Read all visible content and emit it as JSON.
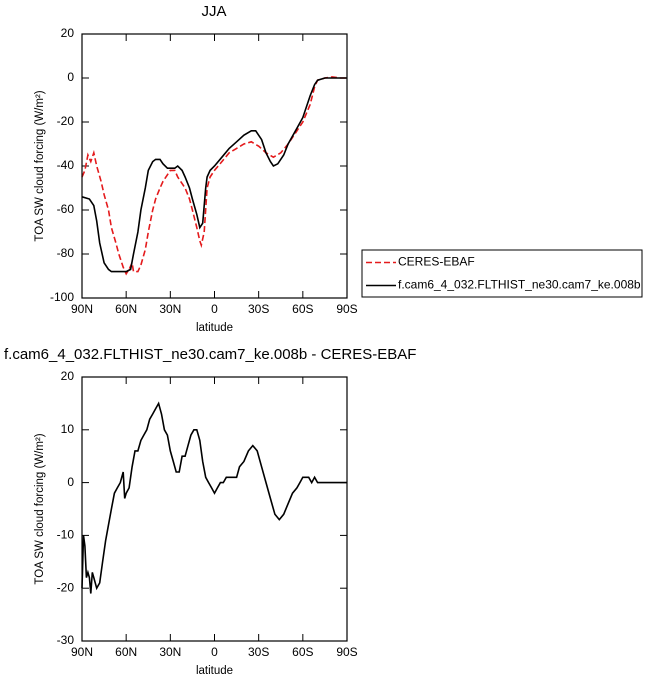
{
  "chart_data": [
    {
      "type": "line",
      "title": "JJA",
      "xlabel": "latitude",
      "ylabel": "TOA SW cloud forcing (W/m²)",
      "xlim": [
        90,
        -90
      ],
      "xticks": [
        {
          "value": 90,
          "label": "90N"
        },
        {
          "value": 60,
          "label": "60N"
        },
        {
          "value": 30,
          "label": "30N"
        },
        0,
        {
          "value": -30,
          "label": "30S"
        },
        {
          "value": -60,
          "label": "60S"
        },
        {
          "value": -90,
          "label": "90S"
        }
      ],
      "ylim": [
        -100,
        20
      ],
      "yticks": [
        -100,
        -80,
        -60,
        -40,
        -20,
        0,
        20
      ],
      "legend": "right",
      "series": [
        {
          "name": "CERES-EBAF",
          "color": "#e41a1c",
          "dashed": true,
          "x": [
            90,
            88,
            86,
            84,
            82,
            80,
            77,
            75,
            72,
            70,
            67,
            65,
            62,
            60,
            58,
            56,
            55,
            52,
            50,
            47,
            45,
            42,
            40,
            37,
            35,
            32,
            30,
            27,
            25,
            22,
            20,
            17,
            15,
            12,
            10,
            9,
            7,
            5,
            3,
            0,
            -5,
            -10,
            -15,
            -20,
            -25,
            -30,
            -35,
            -40,
            -45,
            -50,
            -55,
            -60,
            -65,
            -68,
            -70,
            -75,
            -80,
            -85,
            -90
          ],
          "values": [
            -45,
            -42,
            -35,
            -38,
            -34,
            -40,
            -47,
            -53,
            -60,
            -68,
            -75,
            -80,
            -86,
            -89,
            -87,
            -84,
            -88,
            -88,
            -85,
            -78,
            -70,
            -60,
            -55,
            -50,
            -47,
            -44,
            -42,
            -42,
            -45,
            -48,
            -50,
            -55,
            -60,
            -68,
            -74,
            -76,
            -70,
            -50,
            -45,
            -42,
            -38,
            -34,
            -32,
            -30,
            -29,
            -31,
            -34,
            -36,
            -34,
            -30,
            -25,
            -20,
            -12,
            -4,
            -1,
            0,
            0.5,
            0,
            0
          ]
        },
        {
          "name": "f.cam6_4_032.FLTHIST_ne30.cam7_ke.008b",
          "color": "#000000",
          "dashed": false,
          "x": [
            90,
            85,
            82,
            80,
            78,
            75,
            72,
            70,
            65,
            60,
            57,
            55,
            52,
            50,
            47,
            45,
            42,
            40,
            37,
            35,
            32,
            30,
            27,
            25,
            22,
            20,
            17,
            15,
            12,
            10,
            8,
            6,
            5,
            3,
            0,
            -5,
            -10,
            -15,
            -20,
            -25,
            -28,
            -32,
            -35,
            -38,
            -40,
            -43,
            -47,
            -50,
            -55,
            -60,
            -65,
            -68,
            -70,
            -75,
            -80,
            -85,
            -90
          ],
          "values": [
            -54,
            -55,
            -58,
            -65,
            -75,
            -84,
            -87,
            -88,
            -88,
            -88,
            -87,
            -80,
            -70,
            -60,
            -50,
            -42,
            -38,
            -37,
            -37,
            -39,
            -41,
            -41,
            -41,
            -40,
            -42,
            -45,
            -50,
            -55,
            -62,
            -68,
            -66,
            -50,
            -45,
            -42,
            -40,
            -36,
            -32,
            -29,
            -26,
            -24,
            -24,
            -28,
            -34,
            -38,
            -40,
            -39,
            -35,
            -30,
            -24,
            -18,
            -8,
            -3,
            -1,
            0,
            0,
            0,
            0
          ]
        }
      ]
    },
    {
      "type": "line",
      "title": "f.cam6_4_032.FLTHIST_ne30.cam7_ke.008b - CERES-EBAF",
      "xlabel": "latitude",
      "ylabel": "TOA SW cloud forcing (W/m²)",
      "xlim": [
        90,
        -90
      ],
      "xticks": [
        {
          "value": 90,
          "label": "90N"
        },
        {
          "value": 60,
          "label": "60N"
        },
        {
          "value": 30,
          "label": "30N"
        },
        0,
        {
          "value": -30,
          "label": "30S"
        },
        {
          "value": -60,
          "label": "60S"
        },
        {
          "value": -90,
          "label": "90S"
        }
      ],
      "ylim": [
        -30,
        20
      ],
      "yticks": [
        -30,
        -20,
        -10,
        0,
        10,
        20
      ],
      "series": [
        {
          "color": "#000000",
          "dashed": false,
          "x": [
            90,
            89,
            88,
            87,
            86,
            85,
            84,
            83,
            82,
            80,
            78,
            76,
            74,
            72,
            70,
            68,
            66,
            64,
            62,
            61,
            60,
            58,
            56,
            54,
            52,
            50,
            48,
            46,
            44,
            42,
            40,
            38,
            36,
            34,
            32,
            30,
            28,
            26,
            24,
            22,
            20,
            18,
            16,
            14,
            12,
            10,
            8,
            6,
            4,
            2,
            0,
            -2,
            -4,
            -6,
            -8,
            -10,
            -12,
            -15,
            -17,
            -20,
            -23,
            -26,
            -29,
            -32,
            -35,
            -38,
            -41,
            -44,
            -47,
            -50,
            -53,
            -56,
            -58,
            -60,
            -62,
            -64,
            -66,
            -68,
            -70,
            -72,
            -75,
            -80,
            -85,
            -90
          ],
          "values": [
            -20,
            -10,
            -12,
            -18,
            -17,
            -18,
            -21,
            -17,
            -18,
            -20,
            -19,
            -15,
            -11,
            -8,
            -5,
            -2,
            -1,
            0,
            2,
            -3,
            -2,
            -1,
            3,
            6,
            6,
            8,
            9,
            10,
            12,
            13,
            14,
            15,
            13,
            10,
            9,
            6,
            4,
            2,
            2,
            5,
            5,
            7,
            9,
            10,
            10,
            8,
            4,
            1,
            0,
            -1,
            -2,
            -1,
            0,
            0,
            1,
            1,
            1,
            1,
            3,
            4,
            6,
            7,
            6,
            3,
            0,
            -3,
            -6,
            -7,
            -6,
            -4,
            -2,
            -1,
            0,
            1,
            1,
            1,
            0,
            1,
            0,
            0,
            0,
            0,
            0,
            0
          ]
        }
      ]
    }
  ]
}
